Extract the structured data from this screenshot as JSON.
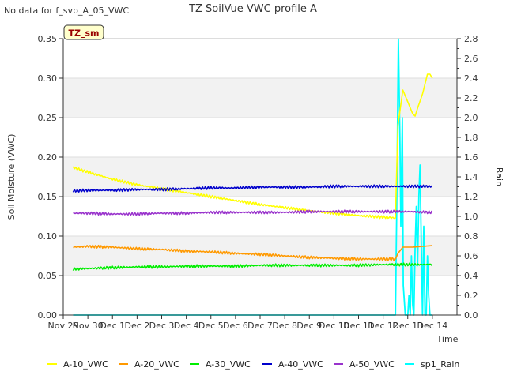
{
  "chart_data": {
    "type": "line",
    "title": "TZ SoilVue VWC profile A",
    "note": "No data for f_svp_A_05_VWC",
    "badge": "TZ_sm",
    "xlabel": "Time",
    "ylabel": "Soil Moisture (VWC)",
    "y2label": "Rain",
    "xlim": [
      0,
      16
    ],
    "ylim": [
      0,
      0.35
    ],
    "y2lim": [
      0,
      2.8
    ],
    "x_tick_labels": [
      "Nov 29",
      "Nov 30",
      "Dec 1",
      "Dec 2",
      "Dec 3",
      "Dec 4",
      "Dec 5",
      "Dec 6",
      "Dec 7",
      "Dec 8",
      "Dec 9",
      "Dec 10",
      "Dec 11",
      "Dec 12",
      "Dec 13",
      "Dec 14"
    ],
    "y_ticks": [
      0.0,
      0.05,
      0.1,
      0.15,
      0.2,
      0.25,
      0.3,
      0.35
    ],
    "y_tick_labels": [
      "0.00",
      "0.05",
      "0.10",
      "0.15",
      "0.20",
      "0.25",
      "0.30",
      "0.35"
    ],
    "y2_ticks": [
      0.0,
      0.2,
      0.4,
      0.6,
      0.8,
      1.0,
      1.2,
      1.4,
      1.6,
      1.8,
      2.0,
      2.2,
      2.4,
      2.6,
      2.8
    ],
    "y2_tick_labels": [
      "0.0",
      "0.2",
      "0.4",
      "0.6",
      "0.8",
      "1.0",
      "1.2",
      "1.4",
      "1.6",
      "1.8",
      "2.0",
      "2.2",
      "2.4",
      "2.6",
      "2.8"
    ],
    "series": [
      {
        "name": "A-10_VWC",
        "color": "#ffff00",
        "axis": "left",
        "x": [
          0.4,
          1,
          2,
          3,
          4,
          5,
          6,
          7,
          8,
          9,
          10,
          11,
          12,
          13.5,
          13.6,
          13.8,
          14.0,
          14.2,
          14.3,
          14.4,
          14.6,
          14.8,
          14.9,
          15.0
        ],
        "y": [
          0.187,
          0.181,
          0.172,
          0.165,
          0.16,
          0.155,
          0.15,
          0.145,
          0.14,
          0.136,
          0.132,
          0.129,
          0.126,
          0.123,
          0.24,
          0.285,
          0.27,
          0.255,
          0.252,
          0.262,
          0.28,
          0.305,
          0.305,
          0.3
        ]
      },
      {
        "name": "A-20_VWC",
        "color": "#ff9900",
        "axis": "left",
        "x": [
          0.4,
          1,
          2,
          3,
          4,
          5,
          6,
          7,
          8,
          9,
          10,
          11,
          12,
          13.5,
          13.6,
          13.8,
          14.2,
          14.6,
          15.0
        ],
        "y": [
          0.086,
          0.087,
          0.086,
          0.084,
          0.083,
          0.081,
          0.08,
          0.078,
          0.077,
          0.075,
          0.073,
          0.072,
          0.071,
          0.071,
          0.078,
          0.086,
          0.086,
          0.087,
          0.088
        ]
      },
      {
        "name": "A-30_VWC",
        "color": "#00ee00",
        "axis": "left",
        "x": [
          0.4,
          1,
          2,
          3,
          4,
          5,
          6,
          7,
          8,
          9,
          10,
          11,
          12,
          13,
          14,
          15.0
        ],
        "y": [
          0.058,
          0.059,
          0.06,
          0.061,
          0.061,
          0.062,
          0.062,
          0.062,
          0.063,
          0.063,
          0.063,
          0.063,
          0.063,
          0.064,
          0.064,
          0.064
        ]
      },
      {
        "name": "A-40_VWC",
        "color": "#0000cc",
        "axis": "left",
        "x": [
          0.4,
          1,
          2,
          3,
          4,
          5,
          6,
          7,
          8,
          9,
          10,
          11,
          12,
          13,
          14,
          15.0
        ],
        "y": [
          0.157,
          0.158,
          0.158,
          0.159,
          0.159,
          0.16,
          0.161,
          0.161,
          0.162,
          0.162,
          0.162,
          0.163,
          0.163,
          0.163,
          0.163,
          0.163
        ]
      },
      {
        "name": "A-50_VWC",
        "color": "#9933cc",
        "axis": "left",
        "x": [
          0.4,
          1,
          2,
          3,
          4,
          5,
          6,
          7,
          8,
          9,
          10,
          11,
          12,
          13,
          14,
          15.0
        ],
        "y": [
          0.129,
          0.129,
          0.128,
          0.128,
          0.129,
          0.129,
          0.13,
          0.13,
          0.13,
          0.13,
          0.131,
          0.131,
          0.131,
          0.131,
          0.131,
          0.13
        ]
      },
      {
        "name": "sp1_Rain",
        "color": "#00ffff",
        "axis": "right",
        "x": [
          0.4,
          13.5,
          13.55,
          13.62,
          13.68,
          13.72,
          13.78,
          13.82,
          13.9,
          14.0,
          14.05,
          14.1,
          14.15,
          14.2,
          14.25,
          14.3,
          14.35,
          14.4,
          14.45,
          14.5,
          14.55,
          14.6,
          14.65,
          14.7,
          14.75,
          14.8,
          14.85,
          14.9,
          15.0
        ],
        "y": [
          0.0,
          0.0,
          1.0,
          2.8,
          1.8,
          0.9,
          2.0,
          0.3,
          0.0,
          0.0,
          0.2,
          0.0,
          0.6,
          0.1,
          0.0,
          0.7,
          1.1,
          0.5,
          1.2,
          1.52,
          0.7,
          0.0,
          0.9,
          0.0,
          0.0,
          0.6,
          0.2,
          0.0,
          0.0
        ]
      }
    ],
    "legend_position": "bottom"
  }
}
